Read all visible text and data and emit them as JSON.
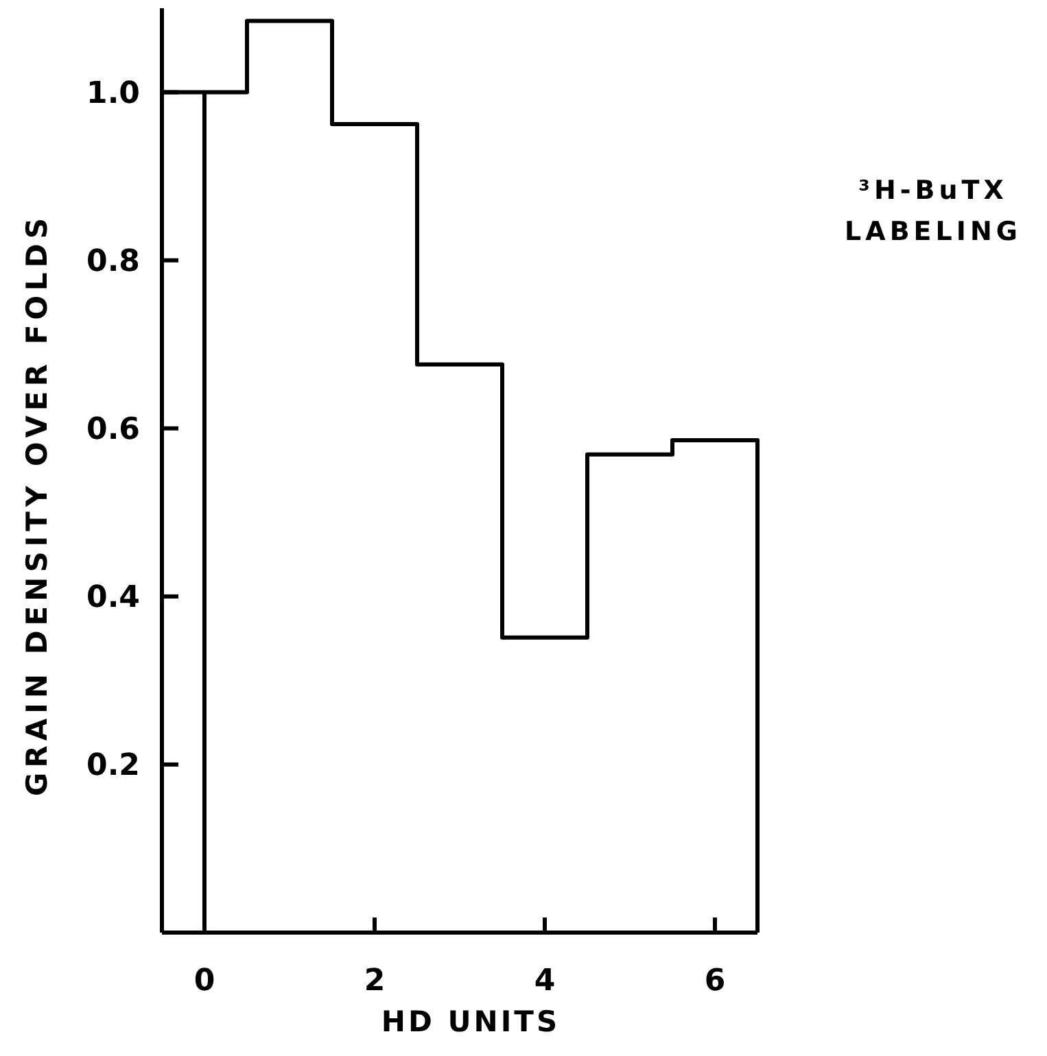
{
  "chart_data": {
    "type": "histogram",
    "xlabel": "HD UNITS",
    "ylabel": "GRAIN DENSITY OVER FOLDS",
    "annotations": [
      "³H-BuTX LABELING"
    ],
    "bins": [
      -0.5,
      0.5,
      1.5,
      2.5,
      3.5,
      4.5,
      5.5,
      6.5
    ],
    "values": [
      1.0,
      1.085,
      0.962,
      0.676,
      0.351,
      0.569,
      0.586
    ],
    "color": "#000000",
    "xlim": [
      -0.5,
      6.5
    ],
    "xticks": [
      0,
      2,
      4,
      6
    ],
    "ylim": [
      0,
      1.1
    ],
    "yticks": [
      0.2,
      0.4,
      0.6,
      {
        "value": 1,
        "label": "1.0"
      },
      0.8
    ],
    "ref_lines": [
      {
        "axis": "x",
        "value": 0
      }
    ],
    "grid": false
  }
}
